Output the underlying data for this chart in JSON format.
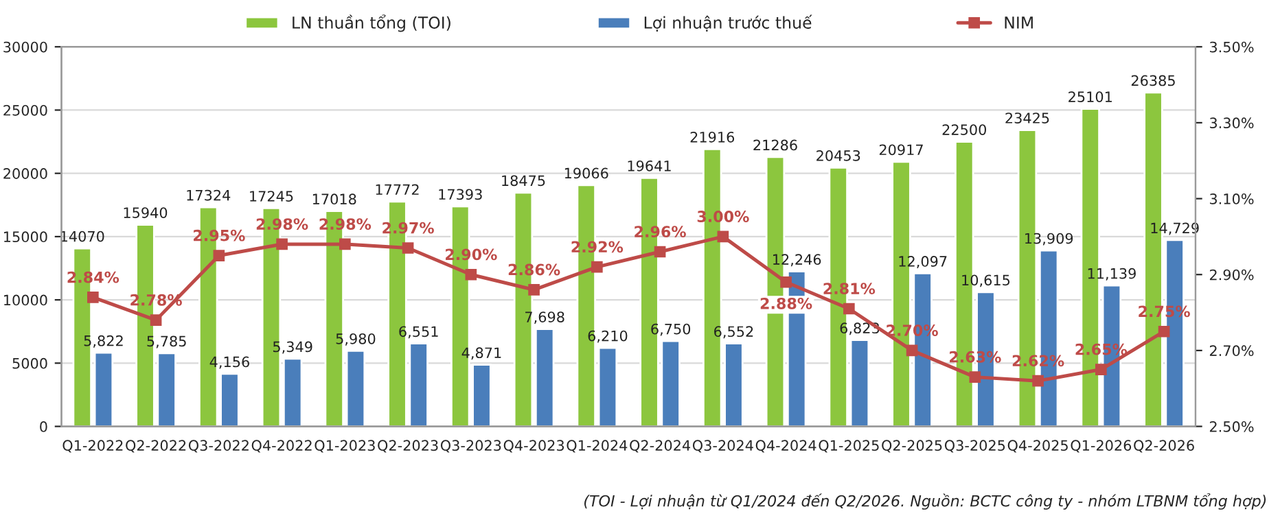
{
  "chart_data": {
    "type": "bar",
    "categories": [
      "Q1-2022",
      "Q2-2022",
      "Q3-2022",
      "Q4-2022",
      "Q1-2023",
      "Q2-2023",
      "Q3-2023",
      "Q4-2023",
      "Q1-2024",
      "Q2-2024",
      "Q3-2024",
      "Q4-2024",
      "Q1-2025",
      "Q2-2025",
      "Q3-2025",
      "Q4-2025",
      "Q1-2026",
      "Q2-2026"
    ],
    "series": [
      {
        "name": "LN thuần tổng (TOI)",
        "type": "bar",
        "color": "#8cc63e",
        "values": [
          14070,
          15940,
          17324,
          17245,
          17018,
          17772,
          17393,
          18475,
          19066,
          19641,
          21916,
          21286,
          20453,
          20917,
          22500,
          23425,
          25101,
          26385
        ],
        "value_labels": [
          "14070",
          "15940",
          "17324",
          "17245",
          "17018",
          "17772",
          "17393",
          "18475",
          "19066",
          "19641",
          "21916",
          "21286",
          "20453",
          "20917",
          "22500",
          "23425",
          "25101",
          "26385"
        ]
      },
      {
        "name": "Lợi nhuận trước thuế",
        "type": "bar",
        "color": "#4a7ebb",
        "values": [
          5822,
          5785,
          4156,
          5349,
          5980,
          6551,
          4871,
          7698,
          6210,
          6750,
          6552,
          12246,
          6823,
          12097,
          10615,
          13909,
          11139,
          14729
        ],
        "value_labels": [
          "5,822",
          "5,785",
          "4,156",
          "5,349",
          "5,980",
          "6,551",
          "4,871",
          "7,698",
          "6,210",
          "6,750",
          "6,552",
          "12,246",
          "6,823",
          "12,097",
          "10,615",
          "13,909",
          "11,139",
          "14,729"
        ]
      },
      {
        "name": "NIM",
        "type": "line",
        "axis": "y2",
        "color": "#be4b48",
        "marker": "square",
        "values": [
          2.84,
          2.78,
          2.95,
          2.98,
          2.98,
          2.97,
          2.9,
          2.86,
          2.92,
          2.96,
          3.0,
          2.88,
          2.81,
          2.7,
          2.63,
          2.62,
          2.65,
          2.75
        ],
        "value_labels": [
          "2.84%",
          "2.78%",
          "2.95%",
          "2.98%",
          "2.98%",
          "2.97%",
          "2.90%",
          "2.86%",
          "2.92%",
          "2.96%",
          "3.00%",
          "2.88%",
          "2.81%",
          "2.70%",
          "2.63%",
          "2.62%",
          "2.65%",
          "2.75%"
        ]
      }
    ],
    "ylim": [
      0,
      30000
    ],
    "yticks": [
      0,
      5000,
      10000,
      15000,
      20000,
      25000,
      30000
    ],
    "y2lim": [
      2.5,
      3.5
    ],
    "y2ticks": [
      {
        "value": 2.5,
        "label": "2.50%"
      },
      {
        "value": 2.7,
        "label": "2.70%"
      },
      {
        "value": 2.9,
        "label": "2.90%"
      },
      {
        "value": 3.1,
        "label": "3.10%"
      },
      {
        "value": 3.3,
        "label": "3.30%"
      },
      {
        "value": 3.5,
        "label": "3.50%"
      }
    ],
    "grid": "y",
    "legend": "top",
    "annotations": [
      "(TOI - Lợi nhuận từ Q1/2024 đến Q2/2026. Nguồn: BCTC công ty - nhóm LTBNM tổng hợp)"
    ]
  }
}
